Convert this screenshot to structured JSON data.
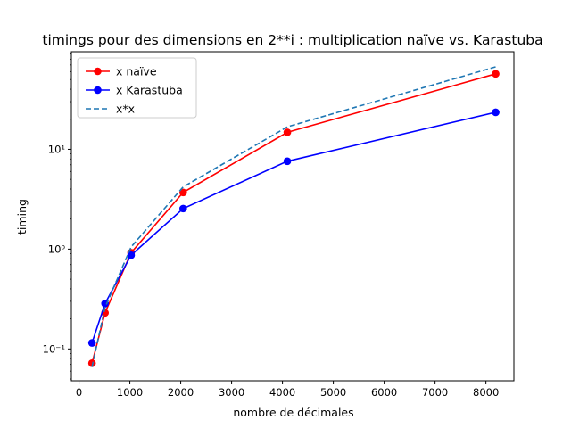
{
  "chart_data": {
    "type": "line",
    "title": "timings pour des dimensions en 2**i : multiplication naïve vs. Karastuba",
    "xlabel": "nombre de décimales",
    "ylabel": "timing",
    "xlim": [
      -150,
      8550
    ],
    "ylim": [
      0.048,
      95
    ],
    "yscale": "log",
    "xticks": [
      0,
      1000,
      2000,
      3000,
      4000,
      5000,
      6000,
      7000,
      8000
    ],
    "xtick_labels": [
      "0",
      "1000",
      "2000",
      "3000",
      "4000",
      "5000",
      "6000",
      "7000",
      "8000"
    ],
    "yticks": [
      0.1,
      1,
      10
    ],
    "ytick_labels": [
      "10⁻¹",
      "10⁰",
      "10¹"
    ],
    "grid": false,
    "legend_position": "top-left",
    "x": [
      256,
      512,
      1024,
      2048,
      4096,
      8192
    ],
    "series": [
      {
        "name": "x naïve",
        "color": "#ff0000",
        "style": "solid",
        "marker": "circle",
        "values": [
          0.072,
          0.23,
          0.92,
          3.7,
          14.8,
          57
        ]
      },
      {
        "name": "x Karastuba",
        "color": "#0000ff",
        "style": "solid",
        "marker": "circle",
        "values": [
          0.115,
          0.285,
          0.87,
          2.55,
          7.6,
          23.5
        ]
      },
      {
        "name": "x*x",
        "color": "#1f77b4",
        "style": "dashed",
        "marker": "none",
        "values": [
          0.066,
          0.26,
          1.05,
          4.2,
          16.8,
          67
        ]
      }
    ]
  }
}
